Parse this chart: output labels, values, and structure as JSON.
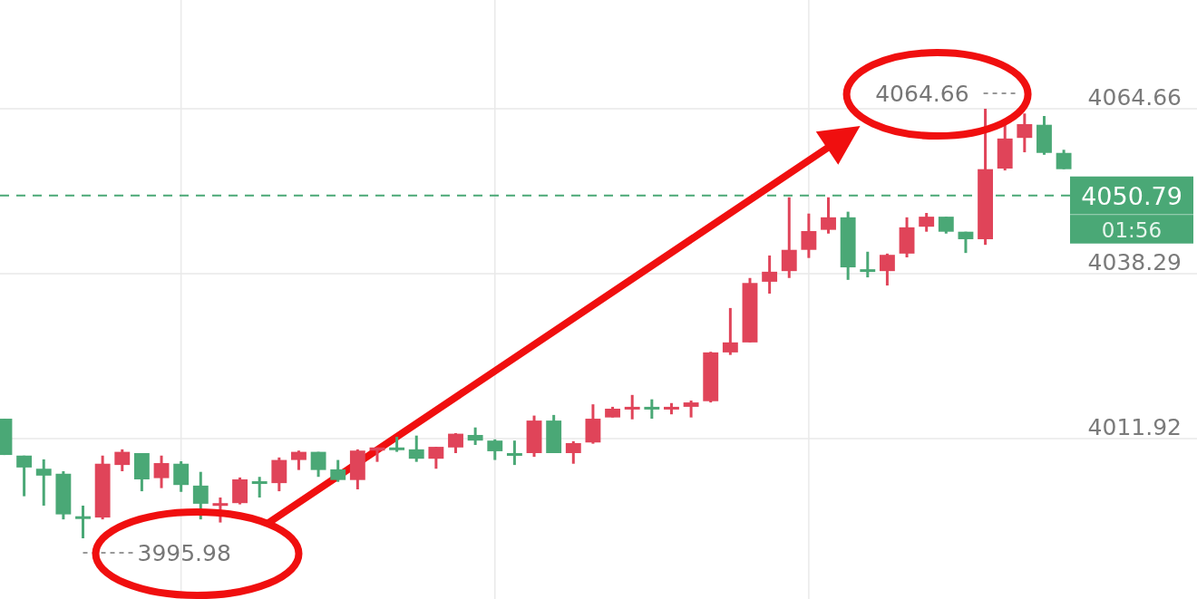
{
  "chart_data": {
    "type": "candlestick",
    "categories": [
      null,
      null,
      null,
      null,
      null,
      null,
      null,
      null,
      null,
      null,
      null,
      null,
      null,
      null,
      null,
      null,
      null,
      null,
      null,
      null,
      null,
      null,
      null,
      null,
      null,
      null,
      null,
      null,
      null,
      null,
      null,
      null,
      null,
      null,
      null,
      null,
      null,
      null,
      null,
      null,
      null,
      null,
      null,
      null,
      null,
      null,
      null,
      null,
      null,
      null,
      null,
      null,
      null,
      null,
      null
    ],
    "ohlc": [
      [
        4015.1,
        4015.1,
        4009.3,
        4009.3
      ],
      [
        4009.2,
        4009.2,
        4002.7,
        4007.3
      ],
      [
        4007.1,
        4008.6,
        4001.2,
        4006.0
      ],
      [
        4006.3,
        4006.7,
        3999.0,
        3999.8
      ],
      [
        3999.5,
        4001.2,
        3995.98,
        3999.4
      ],
      [
        3999.3,
        4009.2,
        3999.0,
        4007.9
      ],
      [
        4007.7,
        4010.2,
        4006.7,
        4009.8
      ],
      [
        4009.6,
        4009.6,
        4003.5,
        4005.4
      ],
      [
        4005.6,
        4009.2,
        4004.0,
        4008.0
      ],
      [
        4007.9,
        4008.3,
        4003.4,
        4004.5
      ],
      [
        4004.4,
        4006.6,
        3999.0,
        4001.5
      ],
      [
        4001.2,
        4002.5,
        3998.5,
        4001.6
      ],
      [
        4001.6,
        4005.7,
        4001.4,
        4005.4
      ],
      [
        4005.1,
        4005.8,
        4002.5,
        4005.0
      ],
      [
        4004.8,
        4008.9,
        4003.5,
        4008.5
      ],
      [
        4008.5,
        4010.0,
        4006.9,
        4009.8
      ],
      [
        4009.8,
        4009.8,
        4005.8,
        4006.9
      ],
      [
        4007.0,
        4008.5,
        4005.0,
        4005.3
      ],
      [
        4005.3,
        4010.2,
        4003.8,
        4010.0
      ],
      [
        4010.0,
        4010.5,
        4008.2,
        4010.5
      ],
      [
        4010.5,
        4012.2,
        4009.8,
        4010.4
      ],
      [
        4010.2,
        4012.4,
        4008.2,
        4008.7
      ],
      [
        4008.7,
        4010.6,
        4007.1,
        4010.6
      ],
      [
        4010.5,
        4012.8,
        4009.6,
        4012.7
      ],
      [
        4012.5,
        4013.7,
        4010.9,
        4011.6
      ],
      [
        4011.6,
        4011.8,
        4008.5,
        4009.9
      ],
      [
        4009.6,
        4011.6,
        4007.7,
        4009.5
      ],
      [
        4009.6,
        4015.6,
        4009.0,
        4014.8
      ],
      [
        4014.8,
        4015.7,
        4009.6,
        4009.6
      ],
      [
        4009.6,
        4011.5,
        4007.9,
        4011.2
      ],
      [
        4011.3,
        4017.4,
        4011.1,
        4015.1
      ],
      [
        4015.3,
        4017.0,
        4015.3,
        4016.7
      ],
      [
        4016.9,
        4018.9,
        4015.0,
        4017.0
      ],
      [
        4017.0,
        4018.2,
        4015.1,
        4016.9
      ],
      [
        4016.9,
        4017.6,
        4015.8,
        4017.0
      ],
      [
        4017.0,
        4018.0,
        4015.3,
        4017.7
      ],
      [
        4017.9,
        4025.8,
        4017.7,
        4025.7
      ],
      [
        4025.7,
        4032.8,
        4025.3,
        4027.3
      ],
      [
        4027.3,
        4037.6,
        4027.3,
        4036.8
      ],
      [
        4037.0,
        4041.2,
        4035.1,
        4038.6
      ],
      [
        4038.7,
        4050.5,
        4037.6,
        4042.1
      ],
      [
        4042.1,
        4047.9,
        4040.8,
        4045.1
      ],
      [
        4045.3,
        4050.5,
        4044.7,
        4047.3
      ],
      [
        4047.3,
        4048.2,
        4037.3,
        4039.3
      ],
      [
        4039.0,
        4041.8,
        4037.7,
        4038.9
      ],
      [
        4038.7,
        4041.5,
        4036.4,
        4041.3
      ],
      [
        4041.5,
        4047.3,
        4040.9,
        4045.7
      ],
      [
        4045.8,
        4048.0,
        4045.0,
        4047.4
      ],
      [
        4047.4,
        4047.4,
        4044.7,
        4045.0
      ],
      [
        4045.0,
        4045.0,
        4041.6,
        4043.8
      ],
      [
        4043.8,
        4064.66,
        4042.9,
        4055.0
      ],
      [
        4055.1,
        4062.1,
        4054.8,
        4059.9
      ],
      [
        4060.0,
        4063.9,
        4057.7,
        4062.2
      ],
      [
        4062.1,
        4063.5,
        4057.3,
        4057.6
      ],
      [
        4057.6,
        4058.1,
        4055.0,
        4055.0
      ]
    ],
    "colors": [
      "#4aa876",
      "#4aa876",
      "#4aa876",
      "#4aa876",
      "#4aa876",
      "#e04459",
      "#e04459",
      "#4aa876",
      "#e04459",
      "#4aa876",
      "#4aa876",
      "#e04459",
      "#e04459",
      "#4aa876",
      "#e04459",
      "#e04459",
      "#4aa876",
      "#4aa876",
      "#e04459",
      "#e04459",
      "#4aa876",
      "#4aa876",
      "#e04459",
      "#e04459",
      "#4aa876",
      "#4aa876",
      "#4aa876",
      "#e04459",
      "#4aa876",
      "#e04459",
      "#e04459",
      "#e04459",
      "#e04459",
      "#4aa876",
      "#e04459",
      "#e04459",
      "#e04459",
      "#e04459",
      "#e04459",
      "#e04459",
      "#e04459",
      "#e04459",
      "#e04459",
      "#4aa876",
      "#4aa876",
      "#e04459",
      "#e04459",
      "#e04459",
      "#4aa876",
      "#4aa876",
      "#e04459",
      "#e04459",
      "#e04459",
      "#4aa876",
      "#4aa876"
    ],
    "ylim": [
      3986.27,
      4082.05
    ],
    "yticks": [
      4011.92,
      4038.29,
      4064.66
    ],
    "grid": true,
    "tick_labels": "y",
    "ref_lines": [
      {
        "axis": "y",
        "value": 4050.79,
        "label": "4050.79",
        "color": "#4aa876",
        "line_style": "dashed"
      }
    ],
    "annotations": [
      "4064.66",
      "3995.98",
      "01:56"
    ]
  }
}
